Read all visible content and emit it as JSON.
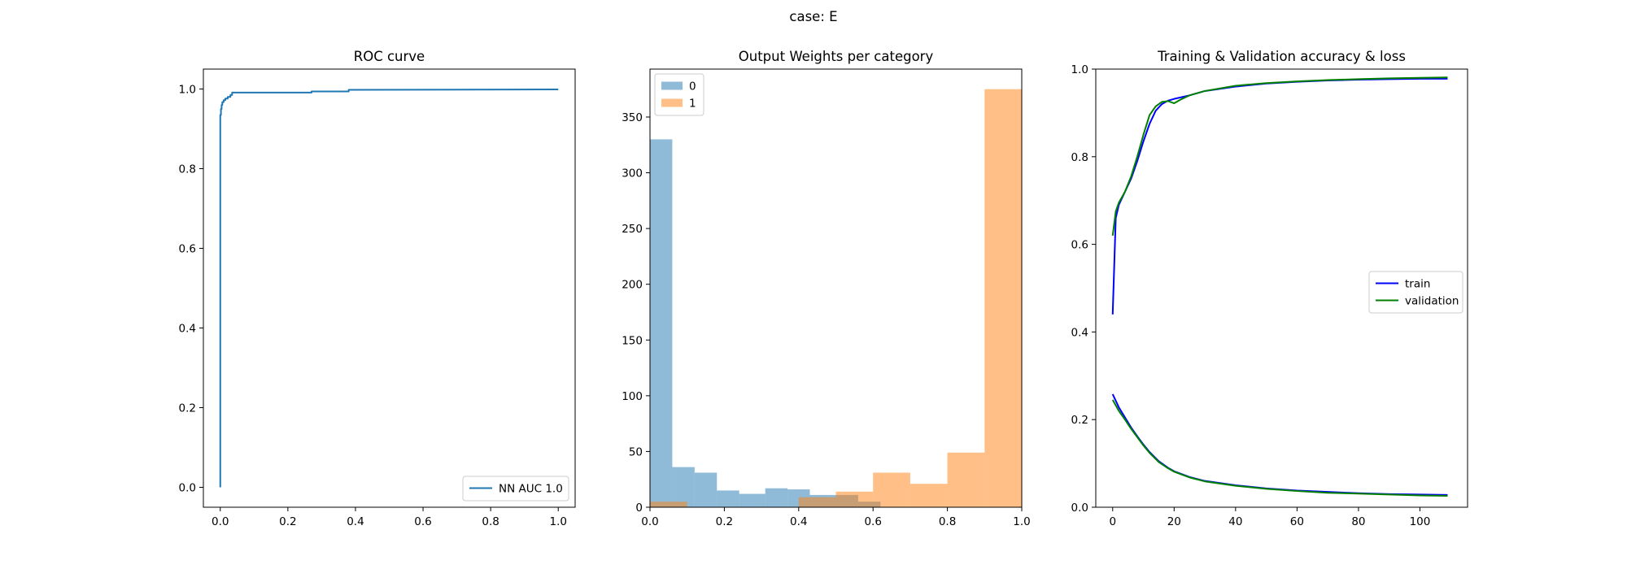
{
  "figure": {
    "suptitle": "case: E"
  },
  "chart_data": [
    {
      "type": "line",
      "title": "ROC curve",
      "xlabel": "",
      "ylabel": "",
      "xlim": [
        -0.05,
        1.05
      ],
      "ylim": [
        -0.05,
        1.05
      ],
      "xticks": [
        0.0,
        0.2,
        0.4,
        0.6,
        0.8,
        1.0
      ],
      "yticks": [
        0.0,
        0.2,
        0.4,
        0.6,
        0.8,
        1.0
      ],
      "xtick_labels": [
        "0.0",
        "0.2",
        "0.4",
        "0.6",
        "0.8",
        "1.0"
      ],
      "ytick_labels": [
        "0.0",
        "0.2",
        "0.4",
        "0.6",
        "0.8",
        "1.0"
      ],
      "legend_position": "lower-right",
      "series": [
        {
          "name": "NN AUC 1.0",
          "color": "#1f77b4",
          "x": [
            0.0,
            0.0,
            0.002,
            0.002,
            0.004,
            0.004,
            0.006,
            0.006,
            0.01,
            0.01,
            0.015,
            0.015,
            0.022,
            0.022,
            0.03,
            0.03,
            0.035,
            0.035,
            0.27,
            0.27,
            0.38,
            0.38,
            1.0
          ],
          "y": [
            0.0,
            0.935,
            0.935,
            0.95,
            0.95,
            0.96,
            0.96,
            0.967,
            0.967,
            0.972,
            0.972,
            0.976,
            0.976,
            0.98,
            0.98,
            0.985,
            0.985,
            0.991,
            0.991,
            0.994,
            0.994,
            0.998,
            0.999
          ]
        }
      ]
    },
    {
      "type": "bar",
      "title": "Output Weights per category",
      "xlabel": "",
      "ylabel": "",
      "xlim": [
        0.0,
        1.0
      ],
      "ylim": [
        0,
        393
      ],
      "xticks": [
        0.0,
        0.2,
        0.4,
        0.6,
        0.8,
        1.0
      ],
      "yticks": [
        0,
        50,
        100,
        150,
        200,
        250,
        300,
        350
      ],
      "xtick_labels": [
        "0.0",
        "0.2",
        "0.4",
        "0.6",
        "0.8",
        "1.0"
      ],
      "ytick_labels": [
        "0",
        "50",
        "100",
        "150",
        "200",
        "250",
        "300",
        "350"
      ],
      "legend_position": "upper-left",
      "series": [
        {
          "name": "0",
          "color": "#1f77b4",
          "opacity": 0.5,
          "bin_edges": [
            0.0,
            0.06,
            0.12,
            0.18,
            0.24,
            0.31,
            0.37,
            0.43,
            0.49,
            0.56,
            0.62
          ],
          "values": [
            330,
            36,
            31,
            15,
            12,
            17,
            16,
            11,
            11,
            5
          ]
        },
        {
          "name": "1",
          "color": "#ff7f0e",
          "opacity": 0.5,
          "bin_edges": [
            0.0,
            0.1,
            0.2,
            0.3,
            0.4,
            0.5,
            0.6,
            0.7,
            0.8,
            0.9,
            1.0
          ],
          "values": [
            5,
            0,
            0,
            0,
            9,
            14,
            31,
            21,
            49,
            375
          ]
        }
      ]
    },
    {
      "type": "line",
      "title": "Training & Validation accuracy & loss",
      "xlabel": "",
      "ylabel": "",
      "xlim": [
        -5.5,
        115.5
      ],
      "ylim": [
        0.0,
        1.0
      ],
      "xticks": [
        0,
        20,
        40,
        60,
        80,
        100
      ],
      "yticks": [
        0.0,
        0.2,
        0.4,
        0.6,
        0.8,
        1.0
      ],
      "xtick_labels": [
        "0",
        "20",
        "40",
        "60",
        "80",
        "100"
      ],
      "ytick_labels": [
        "0.0",
        "0.2",
        "0.4",
        "0.6",
        "0.8",
        "1.0"
      ],
      "legend_position": "center-right",
      "series": [
        {
          "name": "train",
          "color": "#0000ff",
          "x": [
            0,
            1,
            2,
            4,
            6,
            8,
            10,
            12,
            14,
            16,
            18,
            20,
            25,
            30,
            40,
            50,
            60,
            70,
            80,
            90,
            100,
            109
          ],
          "y": [
            0.44,
            0.66,
            0.69,
            0.72,
            0.75,
            0.79,
            0.835,
            0.875,
            0.905,
            0.92,
            0.928,
            0.932,
            0.94,
            0.95,
            0.96,
            0.967,
            0.971,
            0.974,
            0.976,
            0.977,
            0.978,
            0.978
          ]
        },
        {
          "name": "validation",
          "color": "#008000",
          "x": [
            0,
            1,
            2,
            4,
            6,
            8,
            10,
            12,
            14,
            16,
            18,
            20,
            22,
            25,
            30,
            40,
            50,
            60,
            70,
            80,
            90,
            100,
            109
          ],
          "y": [
            0.62,
            0.675,
            0.695,
            0.72,
            0.755,
            0.8,
            0.85,
            0.895,
            0.915,
            0.925,
            0.927,
            0.922,
            0.93,
            0.94,
            0.95,
            0.962,
            0.968,
            0.972,
            0.975,
            0.977,
            0.979,
            0.98,
            0.981
          ]
        },
        {
          "name": "train loss",
          "color": "#0000ff",
          "legend": false,
          "x": [
            0,
            2,
            4,
            6,
            8,
            10,
            12,
            15,
            18,
            20,
            25,
            30,
            40,
            50,
            60,
            70,
            80,
            90,
            100,
            109
          ],
          "y": [
            0.258,
            0.228,
            0.205,
            0.182,
            0.162,
            0.143,
            0.126,
            0.105,
            0.09,
            0.082,
            0.069,
            0.06,
            0.05,
            0.043,
            0.038,
            0.035,
            0.032,
            0.03,
            0.029,
            0.028
          ]
        },
        {
          "name": "validation loss",
          "color": "#008000",
          "legend": false,
          "x": [
            0,
            2,
            4,
            6,
            8,
            10,
            12,
            15,
            18,
            20,
            25,
            30,
            40,
            50,
            60,
            70,
            80,
            90,
            100,
            109
          ],
          "y": [
            0.245,
            0.22,
            0.2,
            0.179,
            0.16,
            0.141,
            0.124,
            0.103,
            0.089,
            0.081,
            0.068,
            0.059,
            0.049,
            0.042,
            0.037,
            0.033,
            0.031,
            0.029,
            0.027,
            0.026
          ]
        }
      ]
    }
  ]
}
